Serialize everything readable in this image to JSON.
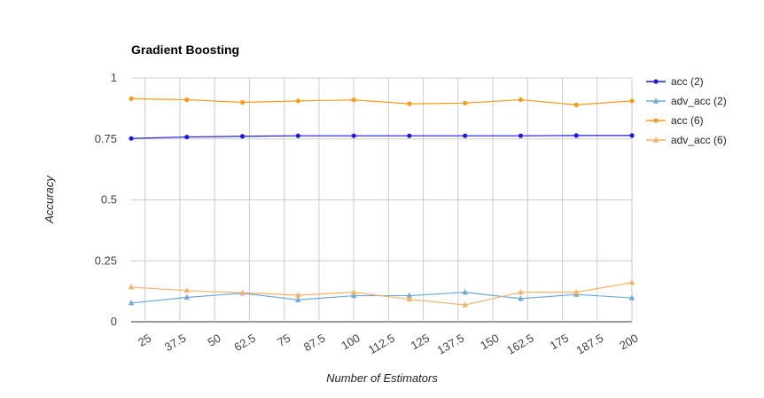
{
  "chart_data": {
    "type": "line",
    "title": "Gradient Boosting",
    "xlabel": "Number of Estimators",
    "ylabel": "Accuracy",
    "xlim": [
      20,
      200
    ],
    "ylim": [
      0,
      1
    ],
    "x_ticks": [
      "25",
      "37.5",
      "50",
      "62.5",
      "75",
      "87.5",
      "100",
      "112.5",
      "125",
      "137.5",
      "150",
      "162.5",
      "175",
      "187.5",
      "200"
    ],
    "y_ticks": [
      "0",
      "0.25",
      "0.5",
      "0.75",
      "1"
    ],
    "x": [
      20,
      40,
      60,
      80,
      100,
      120,
      140,
      160,
      180,
      200
    ],
    "grid": true,
    "legend_position": "right",
    "series": [
      {
        "name": "acc (2)",
        "color": "#1a1adb",
        "marker": "circle",
        "values": [
          0.752,
          0.758,
          0.761,
          0.763,
          0.763,
          0.763,
          0.763,
          0.763,
          0.764,
          0.764
        ]
      },
      {
        "name": "adv_acc (2)",
        "color": "#6fa8dc",
        "marker": "triangle",
        "values": [
          0.077,
          0.1,
          0.117,
          0.09,
          0.107,
          0.107,
          0.121,
          0.095,
          0.112,
          0.098
        ]
      },
      {
        "name": "acc (6)",
        "color": "#f49d1b",
        "marker": "circle",
        "values": [
          0.915,
          0.911,
          0.9,
          0.906,
          0.91,
          0.894,
          0.897,
          0.911,
          0.89,
          0.906
        ]
      },
      {
        "name": "adv_acc (6)",
        "color": "#f6b26b",
        "marker": "triangle",
        "values": [
          0.142,
          0.128,
          0.119,
          0.109,
          0.121,
          0.092,
          0.069,
          0.121,
          0.121,
          0.161
        ]
      }
    ]
  }
}
